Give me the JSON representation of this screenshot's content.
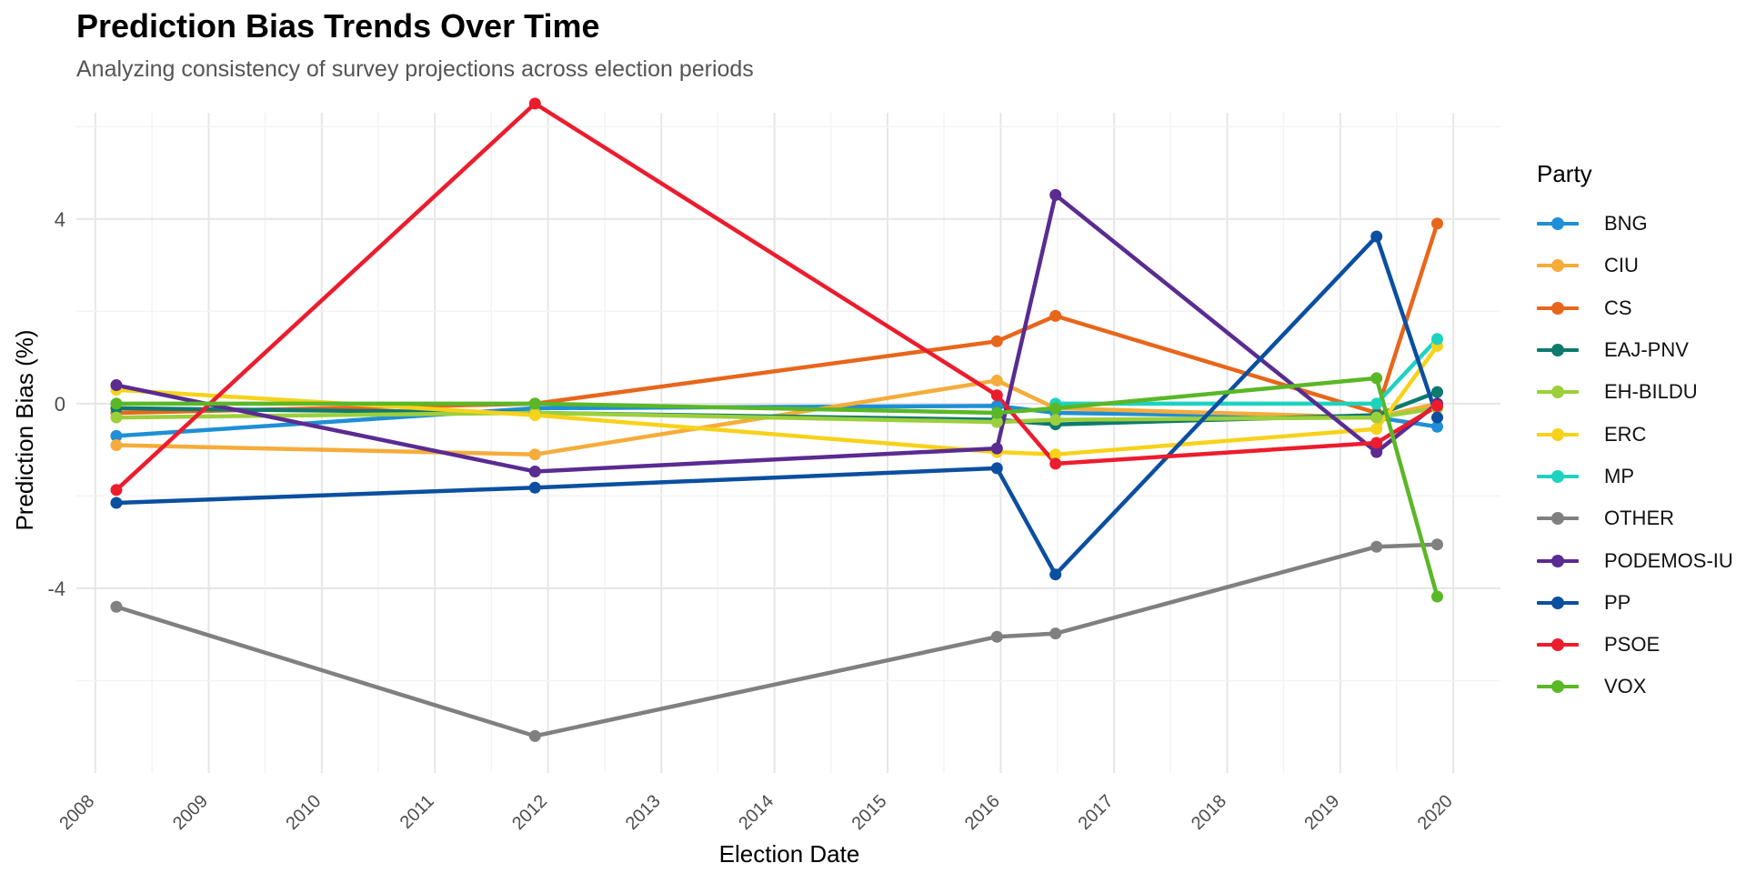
{
  "chart_data": {
    "type": "line",
    "title": "Prediction Bias Trends Over Time",
    "subtitle": "Analyzing consistency of survey projections across election periods",
    "xlabel": "Election Date",
    "ylabel": "Prediction Bias (%)",
    "x_ticks": [
      "2008",
      "2009",
      "2010",
      "2011",
      "2012",
      "2013",
      "2014",
      "2015",
      "2016",
      "2017",
      "2018",
      "2019",
      "2020"
    ],
    "y_ticks": [
      -4,
      0,
      4
    ],
    "xlim": [
      "2007-11-01",
      "2020-06-01"
    ],
    "ylim": [
      -8.0,
      6.3
    ],
    "grid": true,
    "legend_title": "Party",
    "legend_position": "right",
    "x": [
      "2008-03-09",
      "2011-11-20",
      "2015-12-20",
      "2016-06-26",
      "2019-04-28",
      "2019-11-10"
    ],
    "series": [
      {
        "name": "BNG",
        "color": "#1f8fd6",
        "values": [
          -0.7,
          -0.1,
          -0.05,
          -0.2,
          -0.3,
          -0.5
        ]
      },
      {
        "name": "CIU",
        "color": "#f5ac3a",
        "values": [
          -0.9,
          -1.1,
          0.5,
          -0.1,
          -0.3,
          0.0
        ]
      },
      {
        "name": "CS",
        "color": "#e8661b",
        "values": [
          -0.2,
          0.0,
          1.35,
          1.9,
          -0.2,
          3.9
        ]
      },
      {
        "name": "EAJ-PNV",
        "color": "#0e7a6e",
        "values": [
          -0.1,
          -0.2,
          -0.35,
          -0.45,
          -0.25,
          0.25
        ]
      },
      {
        "name": "EH-BILDU",
        "color": "#9ccf3b",
        "values": [
          -0.3,
          -0.2,
          -0.4,
          -0.35,
          -0.3,
          -0.1
        ]
      },
      {
        "name": "ERC",
        "color": "#f7d21b",
        "values": [
          0.3,
          -0.25,
          -1.05,
          -1.1,
          -0.55,
          1.25
        ]
      },
      {
        "name": "MP",
        "color": "#1dd3c0",
        "values": [
          null,
          null,
          null,
          0.0,
          0.0,
          1.4
        ]
      },
      {
        "name": "OTHER",
        "color": "#808080",
        "values": [
          -4.4,
          -7.2,
          -5.05,
          -4.98,
          -3.1,
          -3.05
        ]
      },
      {
        "name": "PODEMOS-IU",
        "color": "#5a2b91",
        "values": [
          0.4,
          -1.47,
          -0.97,
          4.52,
          -1.05,
          0.0
        ]
      },
      {
        "name": "PP",
        "color": "#0b4fa0",
        "values": [
          -2.15,
          -1.82,
          -1.4,
          -3.7,
          3.62,
          -0.3
        ]
      },
      {
        "name": "PSOE",
        "color": "#ec1c2e",
        "values": [
          -1.87,
          6.5,
          0.18,
          -1.3,
          -0.85,
          -0.05
        ]
      },
      {
        "name": "VOX",
        "color": "#5ab726",
        "values": [
          0.0,
          0.0,
          -0.2,
          -0.1,
          0.55,
          -4.18
        ]
      }
    ]
  }
}
